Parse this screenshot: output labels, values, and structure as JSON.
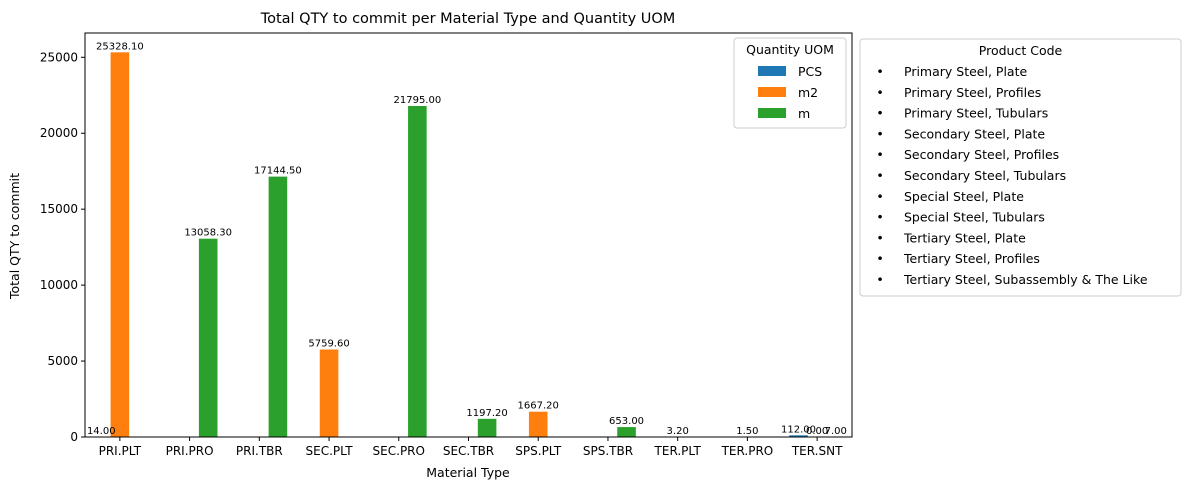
{
  "chart_data": {
    "type": "bar",
    "title": "Total QTY to commit per Material Type and Quantity UOM",
    "xlabel": "Material Type",
    "ylabel": "Total QTY to commit",
    "categories": [
      "PRI.PLT",
      "PRI.PRO",
      "PRI.TBR",
      "SEC.PLT",
      "SEC.PRO",
      "SEC.TBR",
      "SPS.PLT",
      "SPS.TBR",
      "TER.PLT",
      "TER.PRO",
      "TER.SNT"
    ],
    "ylim": [
      0,
      26600
    ],
    "yticks": [
      0,
      5000,
      10000,
      15000,
      20000,
      25000
    ],
    "grid": false,
    "series": [
      {
        "name": "PCS",
        "color": "#1f77b4",
        "values": [
          14.0,
          null,
          null,
          null,
          null,
          null,
          null,
          null,
          null,
          null,
          112.0
        ]
      },
      {
        "name": "m2",
        "color": "#ff7f0e",
        "values": [
          25328.1,
          null,
          null,
          5759.6,
          null,
          null,
          1667.2,
          null,
          3.2,
          1.5,
          0.0
        ]
      },
      {
        "name": "m",
        "color": "#2ca02c",
        "values": [
          null,
          13058.3,
          17144.5,
          null,
          21795.0,
          1197.2,
          null,
          653.0,
          null,
          null,
          7.0
        ]
      }
    ],
    "bar_labels": [
      {
        "category": "PRI.PLT",
        "series": "PCS",
        "text": "14.00"
      },
      {
        "category": "PRI.PLT",
        "series": "m2",
        "text": "25328.10"
      },
      {
        "category": "PRI.PRO",
        "series": "m",
        "text": "13058.30"
      },
      {
        "category": "PRI.TBR",
        "series": "m",
        "text": "17144.50"
      },
      {
        "category": "SEC.PLT",
        "series": "m2",
        "text": "5759.60"
      },
      {
        "category": "SEC.PRO",
        "series": "m",
        "text": "21795.00"
      },
      {
        "category": "SEC.TBR",
        "series": "m",
        "text": "1197.20"
      },
      {
        "category": "SPS.PLT",
        "series": "m2",
        "text": "1667.20"
      },
      {
        "category": "SPS.TBR",
        "series": "m",
        "text": "653.00"
      },
      {
        "category": "TER.PLT",
        "series": "m2",
        "text": "3.20"
      },
      {
        "category": "TER.PRO",
        "series": "m2",
        "text": "1.50"
      },
      {
        "category": "TER.SNT",
        "series": "PCS",
        "text": "112.00"
      },
      {
        "category": "TER.SNT",
        "series": "m2",
        "text": "0.00"
      },
      {
        "category": "TER.SNT",
        "series": "m",
        "text": "7.00"
      }
    ],
    "legend_uom": {
      "title": "Quantity UOM",
      "placement": "top-right inside plot",
      "entries": [
        "PCS",
        "m2",
        "m"
      ]
    },
    "legend_product": {
      "title": "Product Code",
      "placement": "outside right",
      "marker": "•",
      "entries": [
        "Primary Steel, Plate",
        "Primary Steel, Profiles",
        "Primary Steel, Tubulars",
        "Secondary Steel, Plate",
        "Secondary Steel, Profiles",
        "Secondary Steel, Tubulars",
        "Special Steel, Plate",
        "Special Steel, Tubulars",
        "Tertiary Steel, Plate",
        "Tertiary Steel, Profiles",
        "Tertiary Steel, Subassembly & The Like"
      ]
    }
  }
}
